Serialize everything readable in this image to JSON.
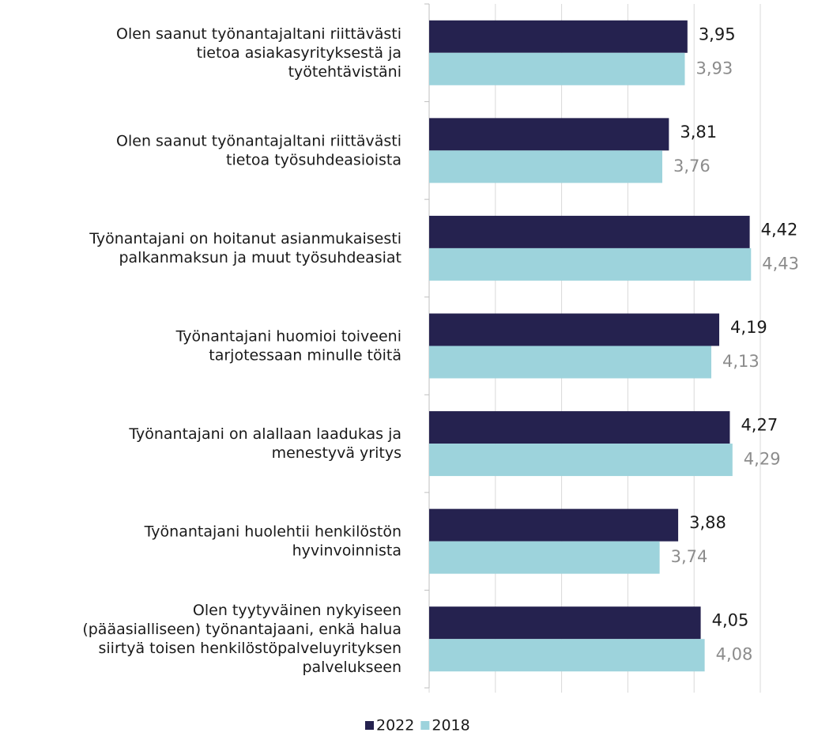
{
  "chart_data": {
    "type": "bar",
    "orientation": "horizontal",
    "categories": [
      "Olen saanut työnantajaltani riittävästi\ntietoa asiakasyrityksestä ja\ntyötehtävistäni",
      "Olen saanut työnantajaltani riittävästi\ntietoa työsuhdeasioista",
      "Työnantajani on hoitanut asianmukaisesti\npalkanmaksun ja muut työsuhdeasiat",
      "Työnantajani huomioi toiveeni\ntarjotessaan minulle töitä",
      "Työnantajani on alallaan laadukas ja\nmenestyvä yritys",
      "Työnantajani huolehtii henkilöstön\nhyvinvoinnista",
      "Olen tyytyväinen nykyiseen\n(pääasialliseen) työnantajaani, enkä halua\nsiirtyä toisen henkilöstöpalveluyrityksen\npalvelukseen"
    ],
    "series": [
      {
        "name": "2022",
        "color": "#25224f",
        "values": [
          3.95,
          3.81,
          4.42,
          4.19,
          4.27,
          3.88,
          4.05
        ],
        "value_labels": [
          "3,95",
          "3,81",
          "4,42",
          "4,19",
          "4,27",
          "3,88",
          "4,05"
        ]
      },
      {
        "name": "2018",
        "color": "#9dd3dc",
        "values": [
          3.93,
          3.76,
          4.43,
          4.13,
          4.29,
          3.74,
          4.08
        ],
        "value_labels": [
          "3,93",
          "3,76",
          "4,43",
          "4,13",
          "4,29",
          "3,74",
          "4,08"
        ]
      }
    ],
    "xlim": [
      2,
      4.5
    ],
    "xticks": [
      2,
      2.5,
      3,
      3.5,
      4,
      4.5
    ],
    "grid": true,
    "legend": "bottom"
  }
}
